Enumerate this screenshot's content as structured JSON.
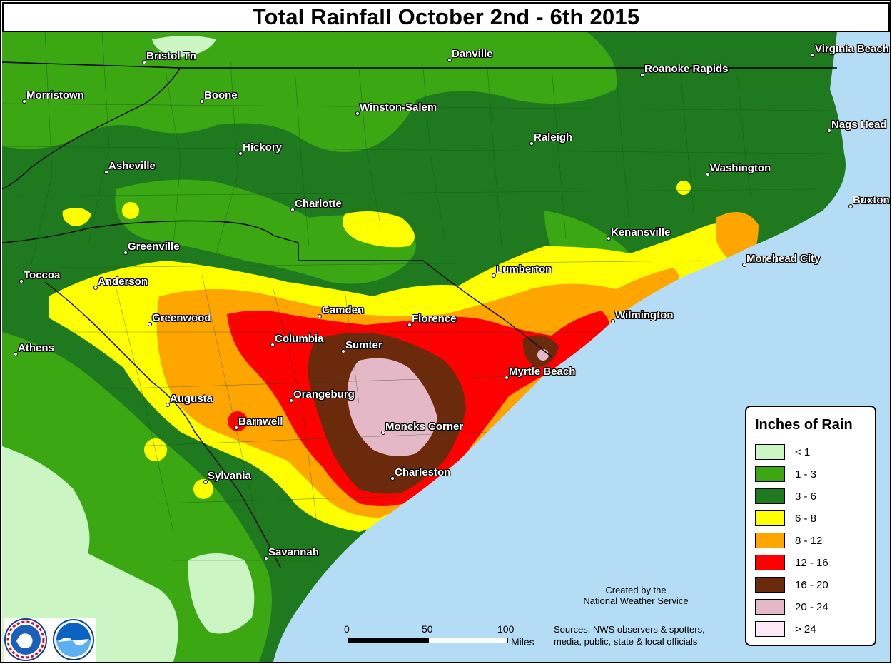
{
  "title": "Total Rainfall October 2nd - 6th 2015",
  "legend": {
    "title": "Inches of Rain",
    "items": [
      {
        "label": "< 1",
        "color": "#ccf5c4"
      },
      {
        "label": "1 - 3",
        "color": "#3aa713"
      },
      {
        "label": "3 - 6",
        "color": "#1f7a1f"
      },
      {
        "label": "6 - 8",
        "color": "#ffff00"
      },
      {
        "label": "8 - 12",
        "color": "#ffa500"
      },
      {
        "label": "12 - 16",
        "color": "#ff0000"
      },
      {
        "label": "16 - 20",
        "color": "#6b2a0c"
      },
      {
        "label": "20 - 24",
        "color": "#e5b8c8"
      },
      {
        "label": "> 24",
        "color": "#fbe9f8"
      }
    ]
  },
  "colors": {
    "ocean": "#b5dcf5",
    "border": "#000000",
    "county_line": "#174d17"
  },
  "cities": [
    "Bristol Tn",
    "Danville",
    "Virginia Beach",
    "Roanoke Rapids",
    "Morristown",
    "Boone",
    "Winston-Salem",
    "Nags Head",
    "Raleigh",
    "Hickory",
    "Asheville",
    "Washington",
    "Charlotte",
    "Buxton",
    "Kenansville",
    "Greenville",
    "Morehead City",
    "Toccoa",
    "Lumberton",
    "Anderson",
    "Camden",
    "Wilmington",
    "Greenwood",
    "Florence",
    "Columbia",
    "Athens",
    "Sumter",
    "Myrtle Beach",
    "Orangeburg",
    "Augusta",
    "Barnwell",
    "Moncks Corner",
    "Charleston",
    "Sylvania",
    "Savannah"
  ],
  "credit": {
    "line1": "Created by the",
    "line2": "National Weather Service"
  },
  "sources": {
    "line1": "Sources: NWS observers & spotters,",
    "line2": "media, public, state & local officials"
  },
  "scale": {
    "ticks": [
      "0",
      "50",
      "100"
    ],
    "unit": "Miles"
  },
  "logos": {
    "nws": "NATIONAL WEATHER SERVICE",
    "noaa": "NOAA"
  }
}
